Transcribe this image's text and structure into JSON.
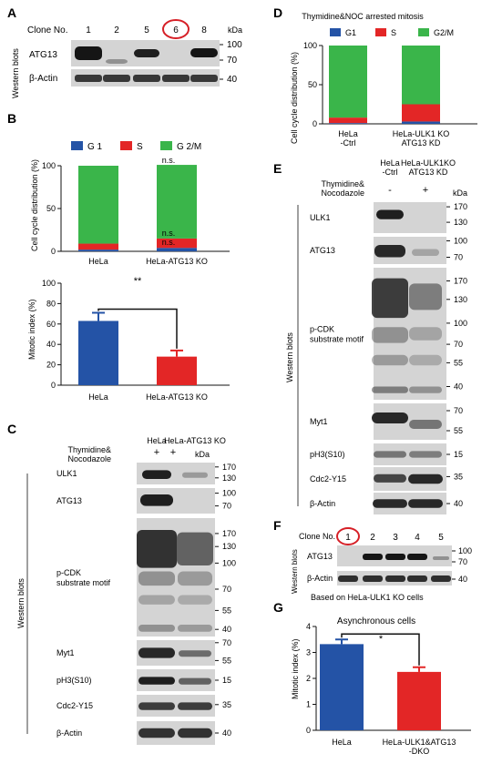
{
  "panel_letters": {
    "a": "A",
    "b": "B",
    "c": "C",
    "d": "D",
    "e": "E",
    "f": "F",
    "g": "G"
  },
  "panelA": {
    "clone_label": "Clone No.",
    "clones": [
      "1",
      "2",
      "5",
      "6",
      "8"
    ],
    "circled_clone": "6",
    "kda": "kDa",
    "side_label": "Western blots",
    "rows": [
      {
        "name": "ATG13",
        "markers": [
          "100",
          "70"
        ],
        "bands": [
          {
            "lane": 0,
            "intensity": 1.0
          },
          {
            "lane": 1,
            "intensity": 0.3
          },
          {
            "lane": 2,
            "intensity": 0.9
          },
          {
            "lane": 4,
            "intensity": 1.0
          }
        ]
      },
      {
        "name": "β-Actin",
        "markers": [
          "40"
        ],
        "bands": [
          {
            "lane": 0,
            "intensity": 0.85
          },
          {
            "lane": 1,
            "intensity": 0.85
          },
          {
            "lane": 2,
            "intensity": 0.85
          },
          {
            "lane": 3,
            "intensity": 0.85
          },
          {
            "lane": 4,
            "intensity": 0.85
          }
        ]
      }
    ]
  },
  "panelB": {
    "stacked": {
      "ylabel": "Cell cycle distribution (%)",
      "legend": [
        "G 1",
        "S",
        "G 2/M"
      ],
      "ns_labels": [
        "n.s.",
        "n.s.",
        "n.s."
      ]
    },
    "mitotic": {
      "ylabel": "Mitotic index (%)",
      "significance": "**"
    }
  },
  "panelC": {
    "header": {
      "ctrl": "HeLa",
      "ko": "HeLa-ATG13 KO",
      "treat": "Thymidine&\nNocodazole",
      "ctrl_sign": "+",
      "ko_sign": "+",
      "kda": "kDa"
    },
    "side_label": "Western blots",
    "rows": [
      {
        "name": "ULK1",
        "markers": [
          "170",
          "130"
        ]
      },
      {
        "name": "ATG13",
        "markers": [
          "100",
          "70"
        ]
      },
      {
        "name": "p-CDK\nsubstrate motif",
        "markers": [
          "170",
          "130",
          "100",
          "70",
          "55",
          "40"
        ]
      },
      {
        "name": "Myt1",
        "markers": [
          "70",
          "55"
        ]
      },
      {
        "name": "pH3(S10)",
        "markers": [
          "15"
        ]
      },
      {
        "name": "Cdc2-Y15",
        "markers": [
          "35"
        ]
      },
      {
        "name": "β-Actin",
        "markers": [
          "40"
        ]
      }
    ]
  },
  "panelD": {
    "title": "Thymidine&NOC arrested mitosis",
    "ylabel": "Cell cycle distribution (%)",
    "legend": [
      "G1",
      "S",
      "G2/M"
    ]
  },
  "panelE": {
    "header": {
      "ctrl": "HeLa\n-Ctrl",
      "ko": "HeLa-ULK1KO\nATG13 KD",
      "treat": "Thymidine&\nNocodazole",
      "ctrl_sign": "-",
      "ko_sign": "+",
      "kda": "kDa"
    },
    "side_label": "Western blots",
    "rows": [
      {
        "name": "ULK1",
        "markers": [
          "170",
          "130"
        ]
      },
      {
        "name": "ATG13",
        "markers": [
          "100",
          "70"
        ]
      },
      {
        "name": "p-CDK\nsubstrate motif",
        "markers": [
          "170",
          "130",
          "100",
          "70",
          "55",
          "40"
        ]
      },
      {
        "name": "Myt1",
        "markers": [
          "70",
          "55"
        ]
      },
      {
        "name": "pH3(S10)",
        "markers": [
          "15"
        ]
      },
      {
        "name": "Cdc2-Y15",
        "markers": [
          "35"
        ]
      },
      {
        "name": "β-Actin",
        "markers": [
          "40"
        ]
      }
    ]
  },
  "panelF": {
    "clone_label": "Clone No.",
    "clones": [
      "1",
      "2",
      "3",
      "4",
      "5"
    ],
    "circled_clone": "1",
    "side_label": "Western blots",
    "caption": "Based on HeLa-ULK1 KO cells",
    "rows": [
      {
        "name": "ATG13",
        "markers": [
          "100",
          "70"
        ]
      },
      {
        "name": "β-Actin",
        "markers": [
          "40"
        ]
      }
    ]
  },
  "panelG": {
    "title": "Asynchronous cells",
    "significance": "*"
  },
  "colors": {
    "g1": "#2453a6",
    "s": "#e32626",
    "g2m": "#3ab54a",
    "hela": "#2453a6",
    "ko": "#e32626",
    "circle": "#d62027"
  },
  "chart_data": [
    {
      "id": "B-top",
      "type": "bar",
      "stacked": true,
      "categories": [
        "HeLa",
        "HeLa-ATG13 KO"
      ],
      "series": [
        {
          "name": "G 1",
          "values": [
            2,
            4
          ]
        },
        {
          "name": "S",
          "values": [
            7,
            11
          ]
        },
        {
          "name": "G 2/M",
          "values": [
            91,
            86
          ]
        }
      ],
      "ylabel": "Cell cycle distribution (%)",
      "ylim": [
        0,
        100
      ],
      "yticks": [
        0,
        50,
        100
      ],
      "legend": "top"
    },
    {
      "id": "B-bottom",
      "type": "bar",
      "categories": [
        "HeLa",
        "HeLa-ATG13 KO"
      ],
      "values": [
        63,
        28
      ],
      "errors": [
        8,
        6
      ],
      "ylabel": "Mitotic index (%)",
      "ylim": [
        0,
        100
      ],
      "yticks": [
        0,
        20,
        40,
        60,
        80,
        100
      ]
    },
    {
      "id": "D",
      "type": "bar",
      "stacked": true,
      "title": "Thymidine&NOC arrested mitosis",
      "categories": [
        "HeLa\n-Ctrl",
        "HeLa-ULK1 KO\nATG13 KD"
      ],
      "series": [
        {
          "name": "G1",
          "values": [
            1,
            3
          ]
        },
        {
          "name": "S",
          "values": [
            7,
            22
          ]
        },
        {
          "name": "G2/M",
          "values": [
            92,
            75
          ]
        }
      ],
      "ylabel": "Cell cycle distribution (%)",
      "ylim": [
        0,
        100
      ],
      "yticks": [
        0,
        50,
        100
      ],
      "legend": "top"
    },
    {
      "id": "G",
      "type": "bar",
      "title": "Asynchronous cells",
      "categories": [
        "HeLa",
        "HeLa-ULK1&ATG13\n-DKO"
      ],
      "values": [
        3.32,
        2.25
      ],
      "errors": [
        0.18,
        0.18
      ],
      "ylabel": "Mitotic index (%)",
      "ylim": [
        0,
        4
      ],
      "yticks": [
        0,
        1,
        2,
        3,
        4
      ]
    }
  ]
}
